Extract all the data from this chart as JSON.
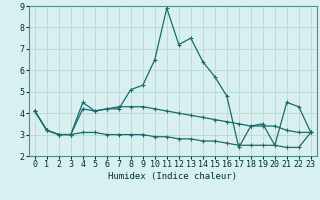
{
  "x": [
    0,
    1,
    2,
    3,
    4,
    5,
    6,
    7,
    8,
    9,
    10,
    11,
    12,
    13,
    14,
    15,
    16,
    17,
    18,
    19,
    20,
    21,
    22,
    23
  ],
  "line1": [
    4.1,
    3.2,
    3.0,
    3.0,
    4.5,
    4.1,
    4.2,
    4.2,
    5.1,
    5.3,
    6.5,
    8.9,
    7.2,
    7.5,
    6.4,
    5.7,
    4.8,
    2.4,
    3.4,
    3.5,
    2.5,
    4.5,
    4.3,
    3.1
  ],
  "line2": [
    4.1,
    3.2,
    3.0,
    3.0,
    4.2,
    4.1,
    4.2,
    4.3,
    4.3,
    4.3,
    4.2,
    4.1,
    4.0,
    3.9,
    3.8,
    3.7,
    3.6,
    3.5,
    3.4,
    3.4,
    3.4,
    3.2,
    3.1,
    3.1
  ],
  "line3": [
    4.1,
    3.2,
    3.0,
    3.0,
    3.1,
    3.1,
    3.0,
    3.0,
    3.0,
    3.0,
    2.9,
    2.9,
    2.8,
    2.8,
    2.7,
    2.7,
    2.6,
    2.5,
    2.5,
    2.5,
    2.5,
    2.4,
    2.4,
    3.1
  ],
  "line_color": "#1a6b6b",
  "bg_color": "#d8f0f0",
  "grid_color": "#b8d8d8",
  "xlabel": "Humidex (Indice chaleur)",
  "ylim": [
    2,
    9
  ],
  "xlim": [
    -0.5,
    23.5
  ],
  "yticks": [
    2,
    3,
    4,
    5,
    6,
    7,
    8,
    9
  ],
  "xticks": [
    0,
    1,
    2,
    3,
    4,
    5,
    6,
    7,
    8,
    9,
    10,
    11,
    12,
    13,
    14,
    15,
    16,
    17,
    18,
    19,
    20,
    21,
    22,
    23
  ]
}
